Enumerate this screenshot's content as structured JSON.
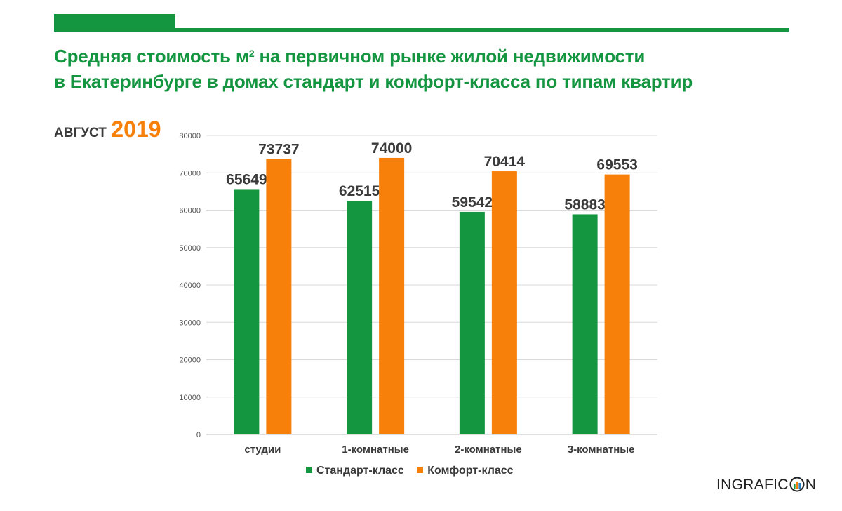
{
  "title_line1_pre": "Средняя стоимость м",
  "title_sup": "2",
  "title_line1_post": " на первичном рынке жилой недвижимости",
  "title_line2": "в Екатеринбурге в домах стандарт и комфорт-класса по типам квартир",
  "period": {
    "month": "АВГУСТ",
    "year": "2019"
  },
  "brand": {
    "pre": "INGRAFIC",
    "post": "N"
  },
  "colors": {
    "green": "#149540",
    "orange": "#f7800a",
    "text": "#3a3a3a",
    "axis": "#555555",
    "grid": "#d9d9d9"
  },
  "chart_data": {
    "type": "bar",
    "categories": [
      "студии",
      "1-комнатные",
      "2-комнатные",
      "3-комнатные"
    ],
    "series": [
      {
        "name": "Стандарт-класс",
        "color": "#149540",
        "values": [
          65649,
          62515,
          59542,
          58883
        ]
      },
      {
        "name": "Комфорт-класс",
        "color": "#f7800a",
        "values": [
          73737,
          74000,
          70414,
          69553
        ]
      }
    ],
    "ylim": [
      0,
      80000
    ],
    "yticks": [
      0,
      10000,
      20000,
      30000,
      40000,
      50000,
      60000,
      70000,
      80000
    ],
    "grid": true,
    "legend": "bottom-center",
    "title": "",
    "xlabel": "",
    "ylabel": ""
  }
}
